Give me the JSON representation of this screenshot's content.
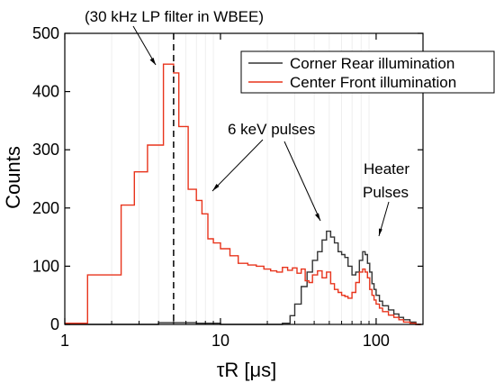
{
  "chart_data": {
    "type": "line",
    "subtype": "step-histogram",
    "xlabel": "τR [μs]",
    "ylabel": "Counts",
    "xscale": "log",
    "xlim": [
      1,
      200
    ],
    "ylim": [
      0,
      500
    ],
    "xticks": [
      1,
      10,
      100
    ],
    "xtick_labels": [
      "1",
      "10",
      "100"
    ],
    "yticks": [
      0,
      100,
      200,
      300,
      400,
      500
    ],
    "ytick_labels": [
      "0",
      "100",
      "200",
      "300",
      "400",
      "500"
    ],
    "grid": "vertical minor gridlines",
    "legend_position": "top-right",
    "series": [
      {
        "name": "Corner Rear illumination",
        "color": "#333333",
        "x": [
          1.0,
          4.0,
          7.0,
          10.0,
          25.0,
          28.0,
          30.0,
          33.0,
          36.0,
          39.0,
          42.0,
          45.0,
          48.0,
          51.0,
          54.0,
          57.0,
          60.0,
          63.0,
          66.0,
          70.0,
          74.0,
          78.0,
          82.0,
          85.0,
          88.0,
          91.0,
          94.0,
          97.0,
          100.0,
          105.0,
          110.0,
          120.0,
          130.0,
          140.0,
          150.0,
          165.0,
          180.0
        ],
        "values": [
          0,
          3,
          2,
          0,
          2,
          15,
          35,
          65,
          90,
          110,
          125,
          145,
          160,
          150,
          140,
          125,
          120,
          115,
          100,
          85,
          90,
          110,
          125,
          120,
          105,
          90,
          70,
          60,
          50,
          40,
          32,
          25,
          18,
          12,
          8,
          4,
          0
        ]
      },
      {
        "name": "Center Front illumination",
        "color": "#e8341c",
        "x": [
          1.0,
          1.4,
          2.3,
          2.8,
          3.4,
          4.3,
          5.0,
          5.4,
          6.2,
          7.0,
          7.6,
          8.3,
          9.0,
          10.0,
          11.5,
          13.0,
          15.0,
          17.0,
          19.0,
          21.0,
          23.0,
          25.0,
          27.0,
          29.0,
          31.0,
          33.0,
          35.0,
          37.0,
          39.0,
          42.0,
          45.0,
          48.0,
          51.0,
          54.0,
          57.0,
          60.0,
          63.0,
          66.0,
          70.0,
          74.0,
          78.0,
          82.0,
          85.0,
          88.0,
          91.0,
          94.0,
          97.0,
          100.0,
          105.0,
          110.0,
          120.0,
          130.0,
          140.0,
          150.0,
          165.0,
          180.0
        ],
        "values": [
          2,
          85,
          205,
          262,
          308,
          447,
          432,
          340,
          232,
          213,
          190,
          147,
          140,
          130,
          118,
          105,
          102,
          100,
          95,
          92,
          90,
          98,
          93,
          97,
          88,
          95,
          75,
          72,
          85,
          92,
          80,
          90,
          70,
          60,
          55,
          50,
          48,
          45,
          55,
          72,
          90,
          95,
          90,
          80,
          60,
          50,
          42,
          35,
          28,
          22,
          16,
          12,
          8,
          4,
          2,
          0
        ]
      }
    ],
    "annotations": [
      {
        "text": "(30 kHz LP filter in WBEE)"
      },
      {
        "text": "6 keV pulses"
      },
      {
        "text": "Heater"
      },
      {
        "text": "Pulses"
      }
    ],
    "reference_line": {
      "x": 5.0,
      "style": "dashed",
      "color": "#000000"
    }
  }
}
